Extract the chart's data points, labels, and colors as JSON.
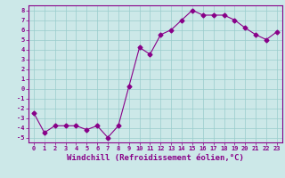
{
  "x": [
    0,
    1,
    2,
    3,
    4,
    5,
    6,
    7,
    8,
    9,
    10,
    11,
    12,
    13,
    14,
    15,
    16,
    17,
    18,
    19,
    20,
    21,
    22,
    23
  ],
  "y": [
    -2.5,
    -4.5,
    -3.8,
    -3.8,
    -3.8,
    -4.2,
    -3.8,
    -5.0,
    -3.8,
    0.2,
    4.2,
    3.5,
    5.5,
    6.0,
    7.0,
    8.0,
    7.5,
    7.5,
    7.5,
    7.0,
    6.2,
    5.5,
    5.0,
    5.8
  ],
  "line_color": "#880088",
  "marker": "D",
  "marker_size": 2.5,
  "bg_color": "#cce8e8",
  "grid_color": "#99cccc",
  "xlabel": "Windchill (Refroidissement éolien,°C)",
  "ylabel": "",
  "xlim": [
    -0.5,
    23.5
  ],
  "ylim": [
    -5.5,
    8.5
  ],
  "yticks": [
    -5,
    -4,
    -3,
    -2,
    -1,
    0,
    1,
    2,
    3,
    4,
    5,
    6,
    7,
    8
  ],
  "xticks": [
    0,
    1,
    2,
    3,
    4,
    5,
    6,
    7,
    8,
    9,
    10,
    11,
    12,
    13,
    14,
    15,
    16,
    17,
    18,
    19,
    20,
    21,
    22,
    23
  ],
  "tick_color": "#880088",
  "tick_fontsize": 5,
  "xlabel_fontsize": 6.5,
  "axis_color": "#880088",
  "spine_color": "#880088",
  "linewidth": 0.8
}
